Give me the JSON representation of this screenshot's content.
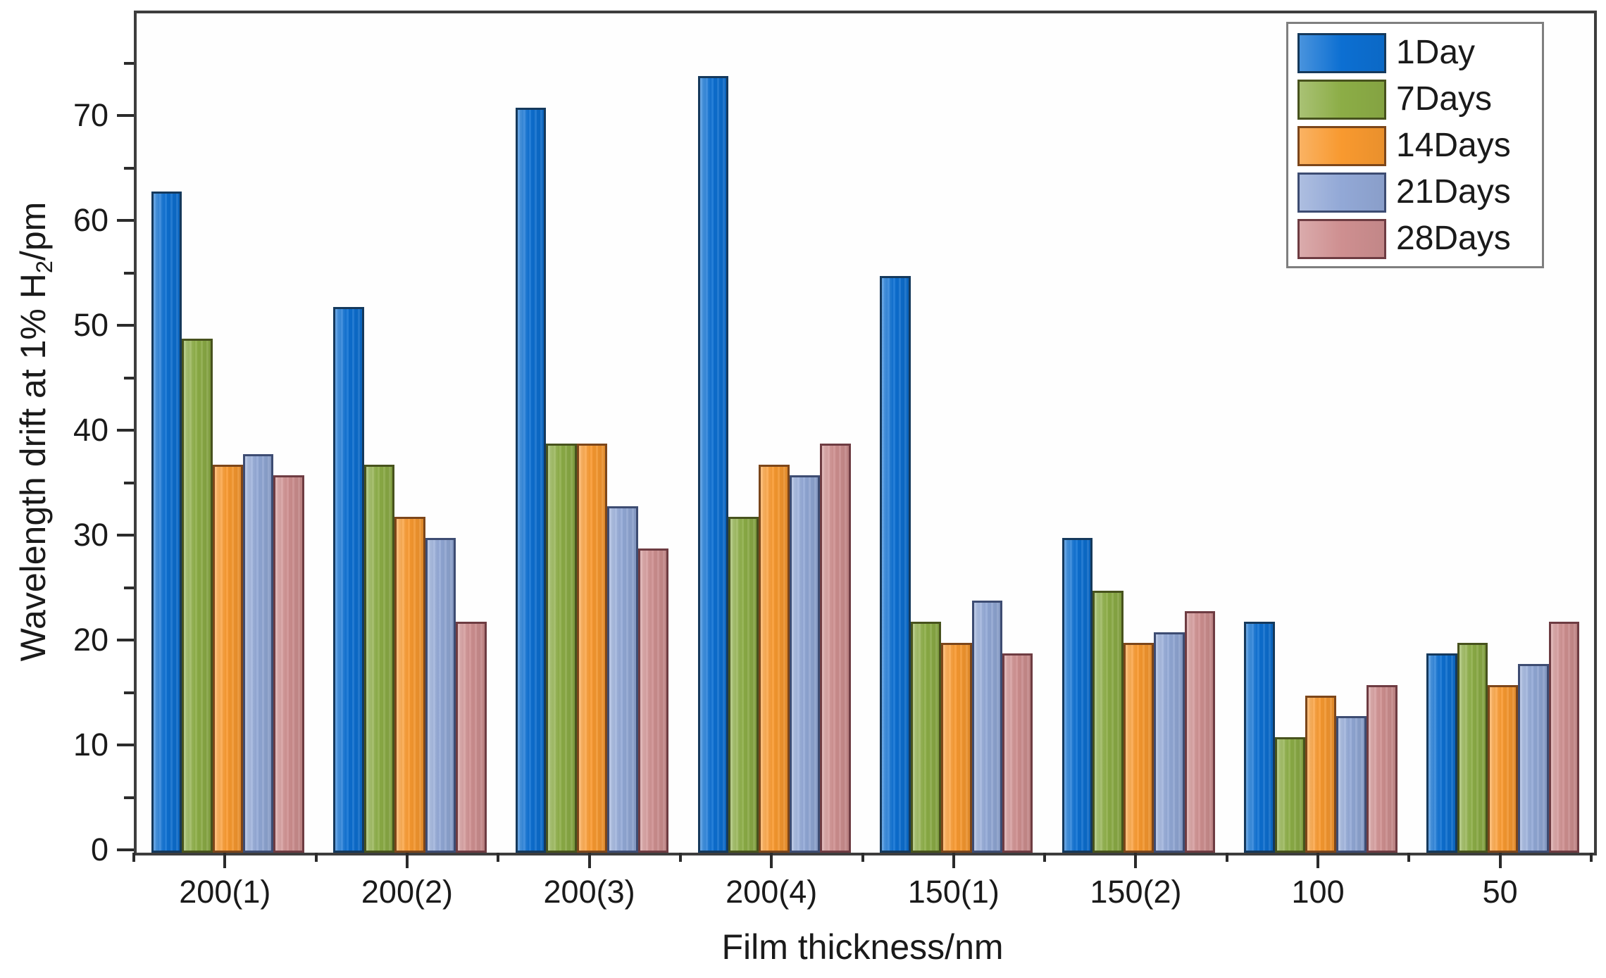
{
  "figure": {
    "background": "#ffffff",
    "frame_color": "#3d3d3d",
    "tick_color": "#2b2b2b",
    "legend_border_color": "#7f7f7f"
  },
  "chart_data": {
    "type": "bar",
    "title": "",
    "xlabel": "Film thickness/nm",
    "ylabel_prefix": "Wavelength drift at 1% H",
    "ylabel_sub": "2",
    "ylabel_suffix": "/pm",
    "categories": [
      "200(1)",
      "200(2)",
      "200(3)",
      "200(4)",
      "150(1)",
      "150(2)",
      "100",
      "50"
    ],
    "series": [
      {
        "name": "1Day",
        "color": "#0c6fd2",
        "edge": "#15395c",
        "values": [
          63,
          52,
          71,
          74,
          55,
          30,
          22,
          19
        ]
      },
      {
        "name": "7Days",
        "color": "#8cad46",
        "edge": "#47521d",
        "values": [
          49,
          37,
          39,
          32,
          22,
          25,
          11,
          20
        ]
      },
      {
        "name": "14Days",
        "color": "#f8992f",
        "edge": "#7c461a",
        "values": [
          37,
          32,
          39,
          37,
          20,
          20,
          15,
          16
        ]
      },
      {
        "name": "21Days",
        "color": "#92a8d6",
        "edge": "#3d4c72",
        "values": [
          38,
          30,
          33,
          36,
          24,
          21,
          13,
          18
        ]
      },
      {
        "name": "28Days",
        "color": "#ce8f90",
        "edge": "#6e3c42",
        "values": [
          36,
          22,
          29,
          39,
          19,
          23,
          16,
          22
        ]
      }
    ],
    "ylim": [
      0,
      80
    ],
    "ytick_step": 10,
    "yminor_step": 5,
    "yticks": [
      "0",
      "10",
      "20",
      "30",
      "40",
      "50",
      "60",
      "70"
    ],
    "legend_position": "top-right",
    "grid": false
  }
}
